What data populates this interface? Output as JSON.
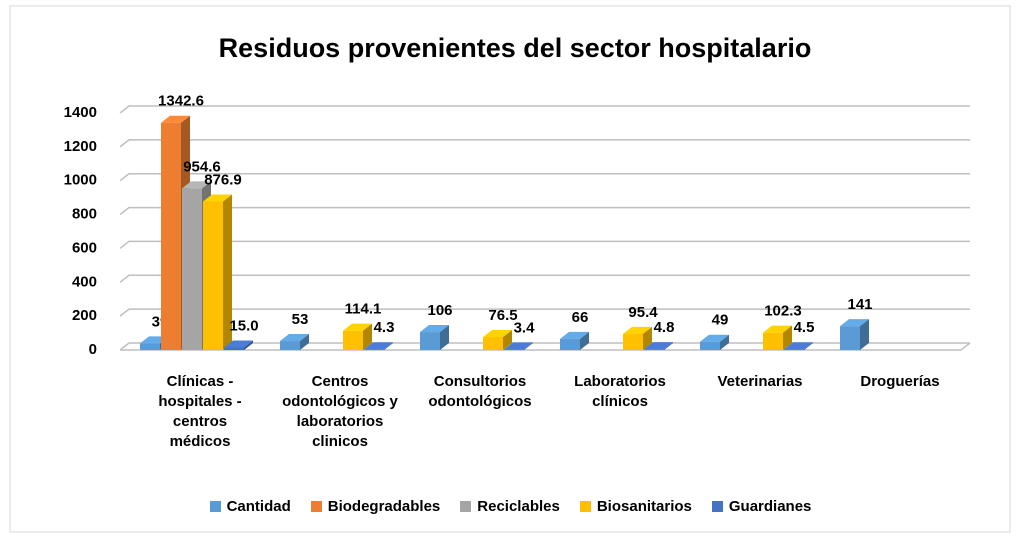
{
  "chart_data": {
    "type": "bar3d",
    "title": "Residuos provenientes del sector hospitalario",
    "categories": [
      "Clínicas - hospitales - centros médicos",
      "Centros odontológicos y laboratorios clinicos",
      "Consultorios odontológicos",
      "Laboratorios clínicos",
      "Veterinarias",
      "Droguerías"
    ],
    "series": [
      {
        "name": "Cantidad",
        "color": "#5b9bd5",
        "values": [
          39,
          53,
          106,
          66,
          49,
          141
        ]
      },
      {
        "name": "Biodegradables",
        "color": "#ed7d31",
        "values": [
          1342.6,
          null,
          null,
          null,
          null,
          null
        ]
      },
      {
        "name": "Reciclables",
        "color": "#a5a5a5",
        "values": [
          954.6,
          null,
          null,
          null,
          null,
          null
        ]
      },
      {
        "name": "Biosanitarios",
        "color": "#ffc000",
        "values": [
          876.9,
          114.1,
          76.5,
          95.4,
          102.3,
          null
        ]
      },
      {
        "name": "Guardianes",
        "color": "#4472c4",
        "values": [
          15.0,
          4.3,
          3.4,
          4.8,
          4.5,
          null
        ],
        "value_labels": [
          "15.0",
          "4.3",
          "3.4",
          "4.8",
          "4.5",
          null
        ]
      }
    ],
    "ylim": [
      0,
      1400
    ],
    "yticks": [
      0,
      200,
      400,
      600,
      800,
      1000,
      1200,
      1400
    ],
    "grid": true,
    "legend": "bottom"
  }
}
